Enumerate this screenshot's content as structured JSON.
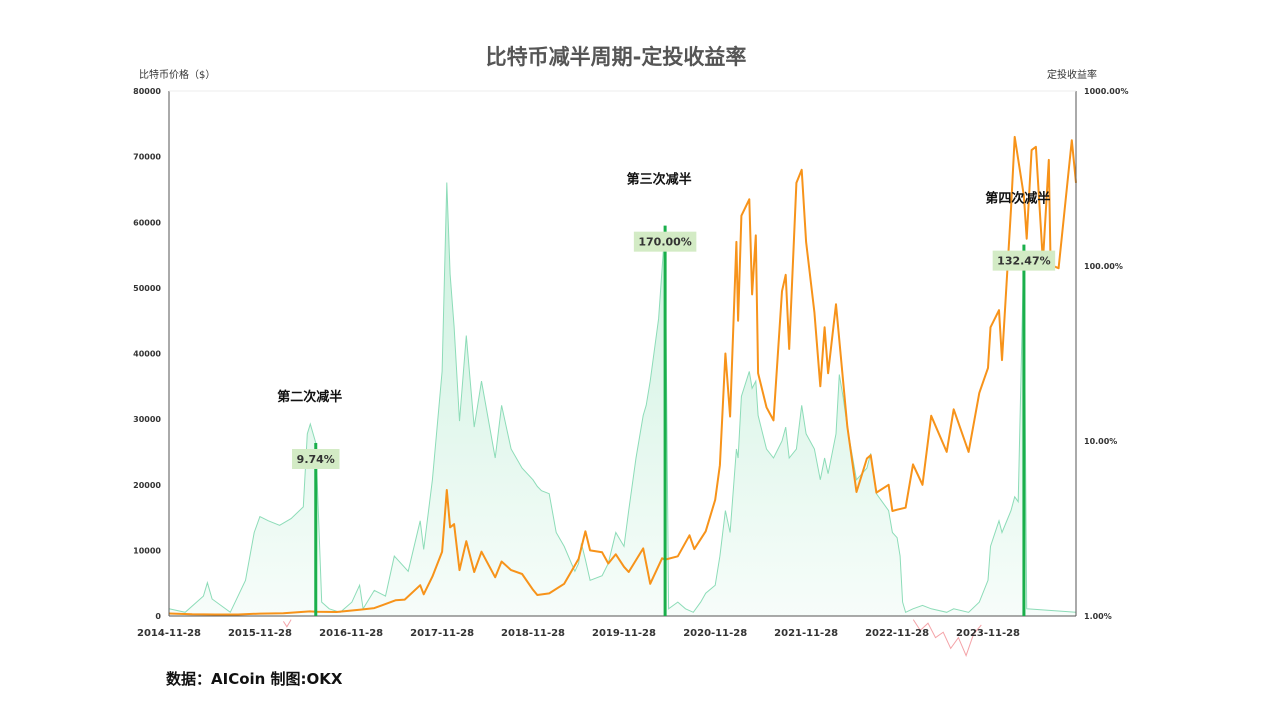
{
  "chart_data": {
    "type": "line",
    "title": "比特币减半周期-定投收益率",
    "ylabel": "比特币价格（$）",
    "ylabel_right": "定投收益率",
    "source_text": "数据：AICoin  制图:OKX",
    "ylim": [
      0,
      80000
    ],
    "ylim_right": [
      1,
      1000
    ],
    "right_scale": "log",
    "y_ticks": [
      "0",
      "10000",
      "20000",
      "30000",
      "40000",
      "50000",
      "60000",
      "70000",
      "80000"
    ],
    "y_right_ticks": [
      "1.00%",
      "10.00%",
      "100.00%",
      "1000.00%"
    ],
    "x_ticks": [
      "2014-11-28",
      "2015-11-28",
      "2016-11-28",
      "2017-11-28",
      "2018-11-28",
      "2019-11-28",
      "2020-11-28",
      "2021-11-28",
      "2022-11-28",
      "2023-11-28"
    ],
    "xlim": [
      "2014-11-28",
      "2024-11-15"
    ],
    "grid": false,
    "legend": "none",
    "colors": {
      "price": "#f7931a",
      "roi_fill": "#c8f0dc",
      "roi_line": "#8ddcb8",
      "roi_negative": "#f4a3a8",
      "halving": "#1aaf4b",
      "roi_box": "#d3ebc5"
    },
    "halvings": [
      {
        "label": "第二次减半",
        "date": "2016-07-09",
        "roi": 9.74,
        "roi_text": "9.74%"
      },
      {
        "label": "第三次减半",
        "date": "2020-05-11",
        "roi": 170.0,
        "roi_text": "170.00%"
      },
      {
        "label": "第四次减半",
        "date": "2024-04-20",
        "roi": 132.47,
        "roi_text": "132.47%"
      }
    ],
    "series": [
      {
        "key": "price",
        "axis": "left",
        "points": [
          [
            "2014-11-28",
            375
          ],
          [
            "2015-03-01",
            260
          ],
          [
            "2015-06-01",
            230
          ],
          [
            "2015-09-01",
            235
          ],
          [
            "2015-11-28",
            360
          ],
          [
            "2016-03-01",
            420
          ],
          [
            "2016-06-15",
            700
          ],
          [
            "2016-07-09",
            650
          ],
          [
            "2016-10-01",
            610
          ],
          [
            "2016-12-31",
            960
          ],
          [
            "2017-03-01",
            1200
          ],
          [
            "2017-05-25",
            2400
          ],
          [
            "2017-07-01",
            2500
          ],
          [
            "2017-09-01",
            4700
          ],
          [
            "2017-09-15",
            3300
          ],
          [
            "2017-10-20",
            6000
          ],
          [
            "2017-11-28",
            9800
          ],
          [
            "2017-12-17",
            19200
          ],
          [
            "2017-12-30",
            13500
          ],
          [
            "2018-01-15",
            14000
          ],
          [
            "2018-02-06",
            7000
          ],
          [
            "2018-03-05",
            11400
          ],
          [
            "2018-04-06",
            6700
          ],
          [
            "2018-05-05",
            9800
          ],
          [
            "2018-06-29",
            5900
          ],
          [
            "2018-07-25",
            8300
          ],
          [
            "2018-09-01",
            7000
          ],
          [
            "2018-10-15",
            6400
          ],
          [
            "2018-11-28",
            4000
          ],
          [
            "2018-12-15",
            3200
          ],
          [
            "2019-02-01",
            3450
          ],
          [
            "2019-04-02",
            4900
          ],
          [
            "2019-05-30",
            8700
          ],
          [
            "2019-06-26",
            12900
          ],
          [
            "2019-07-15",
            10000
          ],
          [
            "2019-09-01",
            9700
          ],
          [
            "2019-09-26",
            8000
          ],
          [
            "2019-10-26",
            9400
          ],
          [
            "2019-11-28",
            7500
          ],
          [
            "2019-12-17",
            6700
          ],
          [
            "2020-02-13",
            10300
          ],
          [
            "2020-03-12",
            4900
          ],
          [
            "2020-04-29",
            8800
          ],
          [
            "2020-05-11",
            8600
          ],
          [
            "2020-07-01",
            9100
          ],
          [
            "2020-08-17",
            12300
          ],
          [
            "2020-09-05",
            10200
          ],
          [
            "2020-10-21",
            12900
          ],
          [
            "2020-11-28",
            17700
          ],
          [
            "2020-12-17",
            23000
          ],
          [
            "2021-01-08",
            40000
          ],
          [
            "2021-01-27",
            30400
          ],
          [
            "2021-02-21",
            57000
          ],
          [
            "2021-02-28",
            45000
          ],
          [
            "2021-03-13",
            61000
          ],
          [
            "2021-04-14",
            63500
          ],
          [
            "2021-04-25",
            49000
          ],
          [
            "2021-05-10",
            58000
          ],
          [
            "2021-05-19",
            37000
          ],
          [
            "2021-06-22",
            31800
          ],
          [
            "2021-07-20",
            29800
          ],
          [
            "2021-08-23",
            49500
          ],
          [
            "2021-09-07",
            52000
          ],
          [
            "2021-09-21",
            40700
          ],
          [
            "2021-10-20",
            66000
          ],
          [
            "2021-11-10",
            68000
          ],
          [
            "2021-11-28",
            57000
          ],
          [
            "2021-12-31",
            46300
          ],
          [
            "2022-01-24",
            35000
          ],
          [
            "2022-02-10",
            44000
          ],
          [
            "2022-02-24",
            37000
          ],
          [
            "2022-03-28",
            47500
          ],
          [
            "2022-05-12",
            28900
          ],
          [
            "2022-06-18",
            18900
          ],
          [
            "2022-07-30",
            24000
          ],
          [
            "2022-08-14",
            24500
          ],
          [
            "2022-09-06",
            18800
          ],
          [
            "2022-10-25",
            20000
          ],
          [
            "2022-11-09",
            16000
          ],
          [
            "2022-11-28",
            16200
          ],
          [
            "2023-01-01",
            16500
          ],
          [
            "2023-01-31",
            23100
          ],
          [
            "2023-03-10",
            20000
          ],
          [
            "2023-04-14",
            30500
          ],
          [
            "2023-06-15",
            25000
          ],
          [
            "2023-07-13",
            31500
          ],
          [
            "2023-09-11",
            25000
          ],
          [
            "2023-10-24",
            34000
          ],
          [
            "2023-11-28",
            37800
          ],
          [
            "2023-12-08",
            44000
          ],
          [
            "2024-01-11",
            46600
          ],
          [
            "2024-01-23",
            39000
          ],
          [
            "2024-02-28",
            62000
          ],
          [
            "2024-03-14",
            73000
          ],
          [
            "2024-04-20",
            64000
          ],
          [
            "2024-05-01",
            57500
          ],
          [
            "2024-05-21",
            71000
          ],
          [
            "2024-06-07",
            71500
          ],
          [
            "2024-07-05",
            54000
          ],
          [
            "2024-07-29",
            69500
          ],
          [
            "2024-08-05",
            53500
          ],
          [
            "2024-09-06",
            53000
          ],
          [
            "2024-10-29",
            72500
          ],
          [
            "2024-11-15",
            66000
          ]
        ]
      },
      {
        "key": "roi",
        "axis": "right",
        "points": [
          [
            "2014-11-28",
            1.1
          ],
          [
            "2015-02-01",
            1.05
          ],
          [
            "2015-04-15",
            1.3
          ],
          [
            "2015-05-01",
            1.55
          ],
          [
            "2015-05-20",
            1.25
          ],
          [
            "2015-08-01",
            1.05
          ],
          [
            "2015-10-01",
            1.6
          ],
          [
            "2015-11-05",
            3.0
          ],
          [
            "2015-11-28",
            3.7
          ],
          [
            "2016-01-01",
            3.5
          ],
          [
            "2016-02-15",
            3.3
          ],
          [
            "2016-04-01",
            3.6
          ],
          [
            "2016-05-20",
            4.2
          ],
          [
            "2016-06-05",
            11.0
          ],
          [
            "2016-06-17",
            12.5
          ],
          [
            "2016-07-09",
            9.74
          ],
          [
            "2016-08-02",
            1.2
          ],
          [
            "2016-09-01",
            1.1
          ],
          [
            "2016-10-15",
            1.05
          ],
          [
            "2016-12-01",
            1.2
          ],
          [
            "2017-01-01",
            1.5
          ],
          [
            "2017-01-15",
            1.1
          ],
          [
            "2017-03-01",
            1.4
          ],
          [
            "2017-04-15",
            1.3
          ],
          [
            "2017-05-20",
            2.2
          ],
          [
            "2017-07-15",
            1.8
          ],
          [
            "2017-09-01",
            3.5
          ],
          [
            "2017-09-15",
            2.4
          ],
          [
            "2017-10-20",
            6.0
          ],
          [
            "2017-11-28",
            25.0
          ],
          [
            "2017-12-17",
            300.0
          ],
          [
            "2017-12-30",
            90.0
          ],
          [
            "2018-01-15",
            45.0
          ],
          [
            "2018-02-06",
            13.0
          ],
          [
            "2018-03-05",
            40.0
          ],
          [
            "2018-04-06",
            12.0
          ],
          [
            "2018-05-05",
            22.0
          ],
          [
            "2018-06-29",
            8.0
          ],
          [
            "2018-07-25",
            16.0
          ],
          [
            "2018-09-01",
            9.0
          ],
          [
            "2018-10-15",
            7.0
          ],
          [
            "2018-11-28",
            6.0
          ],
          [
            "2018-12-15",
            5.5
          ],
          [
            "2019-01-01",
            5.2
          ],
          [
            "2019-02-01",
            5.0
          ],
          [
            "2019-03-01",
            3.0
          ],
          [
            "2019-04-02",
            2.5
          ],
          [
            "2019-05-01",
            2.0
          ],
          [
            "2019-05-15",
            1.8
          ],
          [
            "2019-05-30",
            2.0
          ],
          [
            "2019-06-10",
            2.6
          ],
          [
            "2019-06-26",
            2.1
          ],
          [
            "2019-07-15",
            1.6
          ],
          [
            "2019-09-01",
            1.7
          ],
          [
            "2019-09-26",
            2.0
          ],
          [
            "2019-10-26",
            3.0
          ],
          [
            "2019-11-28",
            2.5
          ],
          [
            "2019-12-17",
            4.0
          ],
          [
            "2020-01-15",
            8.0
          ],
          [
            "2020-02-13",
            14.0
          ],
          [
            "2020-02-25",
            16.0
          ],
          [
            "2020-03-12",
            22.0
          ],
          [
            "2020-04-15",
            50.0
          ],
          [
            "2020-05-11",
            170.0
          ],
          [
            "2020-05-25",
            1.1
          ],
          [
            "2020-07-01",
            1.2
          ],
          [
            "2020-08-01",
            1.1
          ],
          [
            "2020-09-01",
            1.05
          ],
          [
            "2020-10-01",
            1.2
          ],
          [
            "2020-10-21",
            1.35
          ],
          [
            "2020-11-28",
            1.5
          ],
          [
            "2020-12-17",
            2.2
          ],
          [
            "2021-01-08",
            4.0
          ],
          [
            "2021-01-27",
            3.0
          ],
          [
            "2021-02-21",
            9.0
          ],
          [
            "2021-02-28",
            8.0
          ],
          [
            "2021-03-13",
            18.0
          ],
          [
            "2021-04-14",
            25.0
          ],
          [
            "2021-04-25",
            20.0
          ],
          [
            "2021-05-10",
            22.0
          ],
          [
            "2021-05-19",
            14.0
          ],
          [
            "2021-06-22",
            9.0
          ],
          [
            "2021-07-20",
            8.0
          ],
          [
            "2021-08-23",
            10.0
          ],
          [
            "2021-09-07",
            12.0
          ],
          [
            "2021-09-21",
            8.0
          ],
          [
            "2021-10-20",
            9.0
          ],
          [
            "2021-11-10",
            16.0
          ],
          [
            "2021-11-28",
            11.0
          ],
          [
            "2021-12-31",
            9.0
          ],
          [
            "2022-01-24",
            6.0
          ],
          [
            "2022-02-10",
            8.0
          ],
          [
            "2022-02-24",
            6.5
          ],
          [
            "2022-03-28",
            11.0
          ],
          [
            "2022-04-10",
            24.0
          ],
          [
            "2022-04-25",
            18.0
          ],
          [
            "2022-05-12",
            12.0
          ],
          [
            "2022-06-18",
            6.0
          ],
          [
            "2022-07-30",
            7.0
          ],
          [
            "2022-08-14",
            8.5
          ],
          [
            "2022-09-06",
            5.0
          ],
          [
            "2022-10-25",
            4.0
          ],
          [
            "2022-11-09",
            3.0
          ],
          [
            "2022-11-28",
            2.8
          ],
          [
            "2022-12-10",
            2.2
          ],
          [
            "2022-12-20",
            1.2
          ],
          [
            "2023-01-01",
            1.05
          ],
          [
            "2023-01-31",
            1.1
          ],
          [
            "2023-03-10",
            1.15
          ],
          [
            "2023-04-14",
            1.1
          ],
          [
            "2023-06-15",
            1.05
          ],
          [
            "2023-07-13",
            1.1
          ],
          [
            "2023-09-11",
            1.05
          ],
          [
            "2023-10-24",
            1.2
          ],
          [
            "2023-11-28",
            1.6
          ],
          [
            "2023-12-08",
            2.5
          ],
          [
            "2024-01-11",
            3.5
          ],
          [
            "2024-01-23",
            3.0
          ],
          [
            "2024-02-28",
            4.0
          ],
          [
            "2024-03-14",
            4.8
          ],
          [
            "2024-03-28",
            4.5
          ],
          [
            "2024-04-20",
            132.47
          ],
          [
            "2024-05-01",
            1.1
          ],
          [
            "2024-11-15",
            1.05
          ]
        ]
      },
      {
        "key": "roi_negative",
        "axis": "right",
        "note_hidden": false,
        "points": [
          [
            "2016-03-01",
            -0.3
          ],
          [
            "2016-03-15",
            -0.6
          ],
          [
            "2016-04-01",
            -0.2
          ],
          [
            "2023-02-01",
            -0.2
          ],
          [
            "2023-03-01",
            -0.8
          ],
          [
            "2023-04-01",
            -0.4
          ],
          [
            "2023-05-01",
            -1.2
          ],
          [
            "2023-06-01",
            -0.9
          ],
          [
            "2023-07-01",
            -1.8
          ],
          [
            "2023-08-01",
            -1.2
          ],
          [
            "2023-09-01",
            -2.2
          ],
          [
            "2023-10-01",
            -1.0
          ],
          [
            "2023-11-01",
            -0.5
          ]
        ]
      }
    ]
  }
}
